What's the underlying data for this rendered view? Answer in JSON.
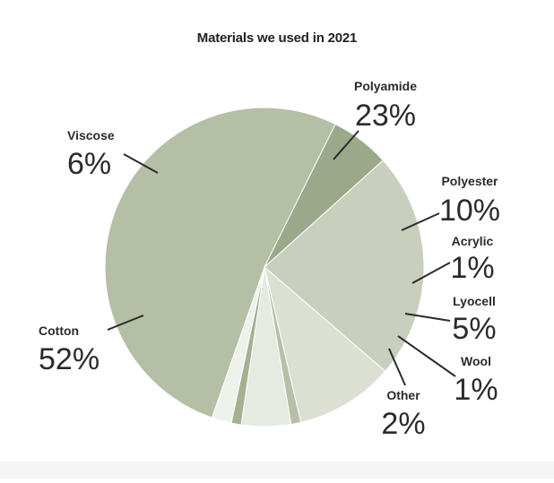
{
  "chart_data": {
    "type": "pie",
    "title": "Materials we used in 2021",
    "slices": [
      {
        "label": "Polyamide",
        "value": 23,
        "display": "23%",
        "color": "#c9cfbd"
      },
      {
        "label": "Polyester",
        "value": 10,
        "display": "10%",
        "color": "#dbe0d2"
      },
      {
        "label": "Acrylic",
        "value": 1,
        "display": "1%",
        "color": "#b6c0a6"
      },
      {
        "label": "Lyocell",
        "value": 5,
        "display": "5%",
        "color": "#e6ebe1"
      },
      {
        "label": "Wool",
        "value": 1,
        "display": "1%",
        "color": "#a3b091"
      },
      {
        "label": "Other",
        "value": 2,
        "display": "2%",
        "color": "#eef2ea"
      },
      {
        "label": "Cotton",
        "value": 52,
        "display": "52%",
        "color": "#b4bfa5"
      },
      {
        "label": "Viscose",
        "value": 6,
        "display": "6%",
        "color": "#9ba98a"
      }
    ]
  }
}
